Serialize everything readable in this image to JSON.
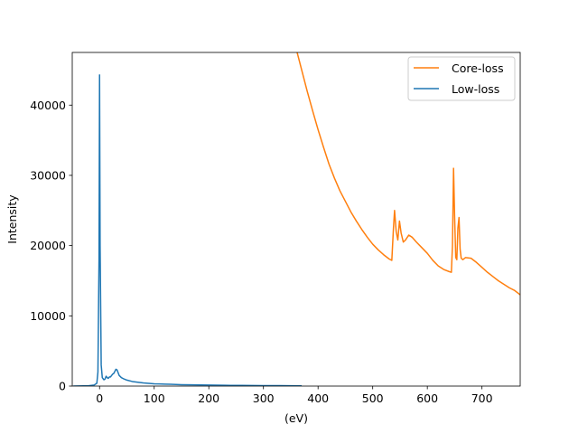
{
  "chart_data": {
    "type": "line",
    "title": "",
    "xlabel": "(eV)",
    "ylabel": "Intensity",
    "xlim": [
      -50,
      770
    ],
    "ylim": [
      0,
      47500
    ],
    "xticks": [
      0,
      100,
      200,
      300,
      400,
      500,
      600,
      700
    ],
    "yticks": [
      0,
      10000,
      20000,
      30000,
      40000
    ],
    "grid": false,
    "legend_position": "top-right",
    "series": [
      {
        "name": "Core-loss",
        "color": "#ff7f0e",
        "x": [
          360,
          370,
          380,
          390,
          400,
          410,
          420,
          430,
          440,
          450,
          460,
          470,
          480,
          490,
          500,
          510,
          520,
          530,
          535,
          538,
          540,
          543,
          546,
          549,
          552,
          556,
          560,
          566,
          572,
          580,
          590,
          600,
          610,
          620,
          630,
          640,
          644,
          646,
          648,
          650,
          652,
          654,
          656,
          658,
          660,
          662,
          665,
          670,
          680,
          690,
          700,
          710,
          720,
          730,
          740,
          750,
          760,
          770
        ],
        "y": [
          48000,
          45000,
          42000,
          39200,
          36500,
          34000,
          31600,
          29600,
          27800,
          26300,
          24800,
          23500,
          22300,
          21200,
          20200,
          19400,
          18700,
          18100,
          17900,
          22500,
          25000,
          22000,
          20800,
          23500,
          21800,
          20500,
          20800,
          21500,
          21200,
          20500,
          19700,
          18900,
          17900,
          17100,
          16600,
          16300,
          16200,
          20000,
          31000,
          24000,
          18300,
          18000,
          22500,
          24000,
          19500,
          18200,
          18000,
          18300,
          18200,
          17600,
          16900,
          16200,
          15600,
          15000,
          14500,
          14000,
          13600,
          13000
        ]
      },
      {
        "name": "Low-loss",
        "color": "#1f77b4",
        "x": [
          -48,
          -20,
          -10,
          -5,
          -3,
          -1,
          0,
          1,
          3,
          5,
          8,
          10,
          12,
          14,
          16,
          18,
          20,
          22,
          24,
          26,
          28,
          30,
          32,
          34,
          36,
          40,
          45,
          50,
          60,
          70,
          80,
          90,
          100,
          110,
          120,
          130,
          150,
          170,
          200,
          230,
          260,
          300,
          330,
          370
        ],
        "y": [
          0,
          50,
          150,
          400,
          2000,
          18000,
          44300,
          20000,
          3000,
          1200,
          900,
          1000,
          1400,
          1200,
          1100,
          1300,
          1300,
          1500,
          1700,
          1800,
          2100,
          2400,
          2300,
          1900,
          1500,
          1200,
          1000,
          850,
          650,
          550,
          450,
          380,
          320,
          300,
          280,
          260,
          200,
          170,
          140,
          110,
          90,
          70,
          60,
          40
        ]
      }
    ]
  }
}
